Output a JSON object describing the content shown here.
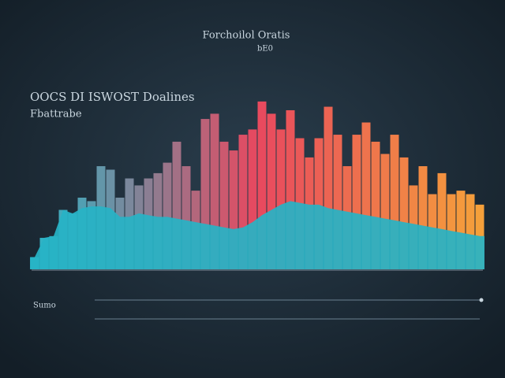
{
  "chart_data": [
    {
      "type": "bar",
      "title": "Forchoilol Oratis",
      "subtitle": "bE0",
      "heading": "OOCS DI ISWOST Doalines",
      "subheading": "Fbattrabe",
      "footer": "Sumo",
      "categories": [
        null,
        null,
        null,
        null,
        null,
        null,
        null,
        null,
        null,
        null,
        null,
        null,
        null,
        null,
        null,
        null,
        null,
        null,
        null,
        null,
        null,
        null,
        null,
        null,
        null,
        null,
        null,
        null,
        null,
        null,
        null,
        null,
        null,
        null,
        null,
        null,
        null,
        null,
        null,
        null,
        null,
        null,
        null,
        null,
        null,
        null,
        null,
        null
      ],
      "values": [
        7,
        18,
        19,
        34,
        32,
        41,
        39,
        59,
        57,
        41,
        52,
        48,
        52,
        55,
        61,
        73,
        59,
        45,
        86,
        89,
        73,
        68,
        77,
        80,
        96,
        89,
        80,
        91,
        75,
        64,
        75,
        93,
        77,
        59,
        77,
        84,
        73,
        66,
        77,
        64,
        48,
        59,
        43,
        55,
        43,
        45,
        43,
        37
      ],
      "color_stops": [
        "#2ab7c9",
        "#e8485f",
        "#f5a03a"
      ],
      "ylim": [
        0,
        100
      ]
    },
    {
      "type": "area",
      "color": "#27b3c6",
      "values": [
        7,
        18,
        19,
        34,
        32,
        35,
        36,
        36,
        35,
        30,
        30,
        32,
        31,
        30,
        30,
        29,
        28,
        27,
        26,
        25,
        24,
        23,
        24,
        27,
        31,
        34,
        37,
        39,
        38,
        37,
        37,
        35,
        34,
        33,
        32,
        31,
        30,
        29,
        28,
        27,
        26,
        25,
        24,
        23,
        22,
        21,
        20,
        19
      ],
      "ylim": [
        0,
        100
      ]
    }
  ]
}
